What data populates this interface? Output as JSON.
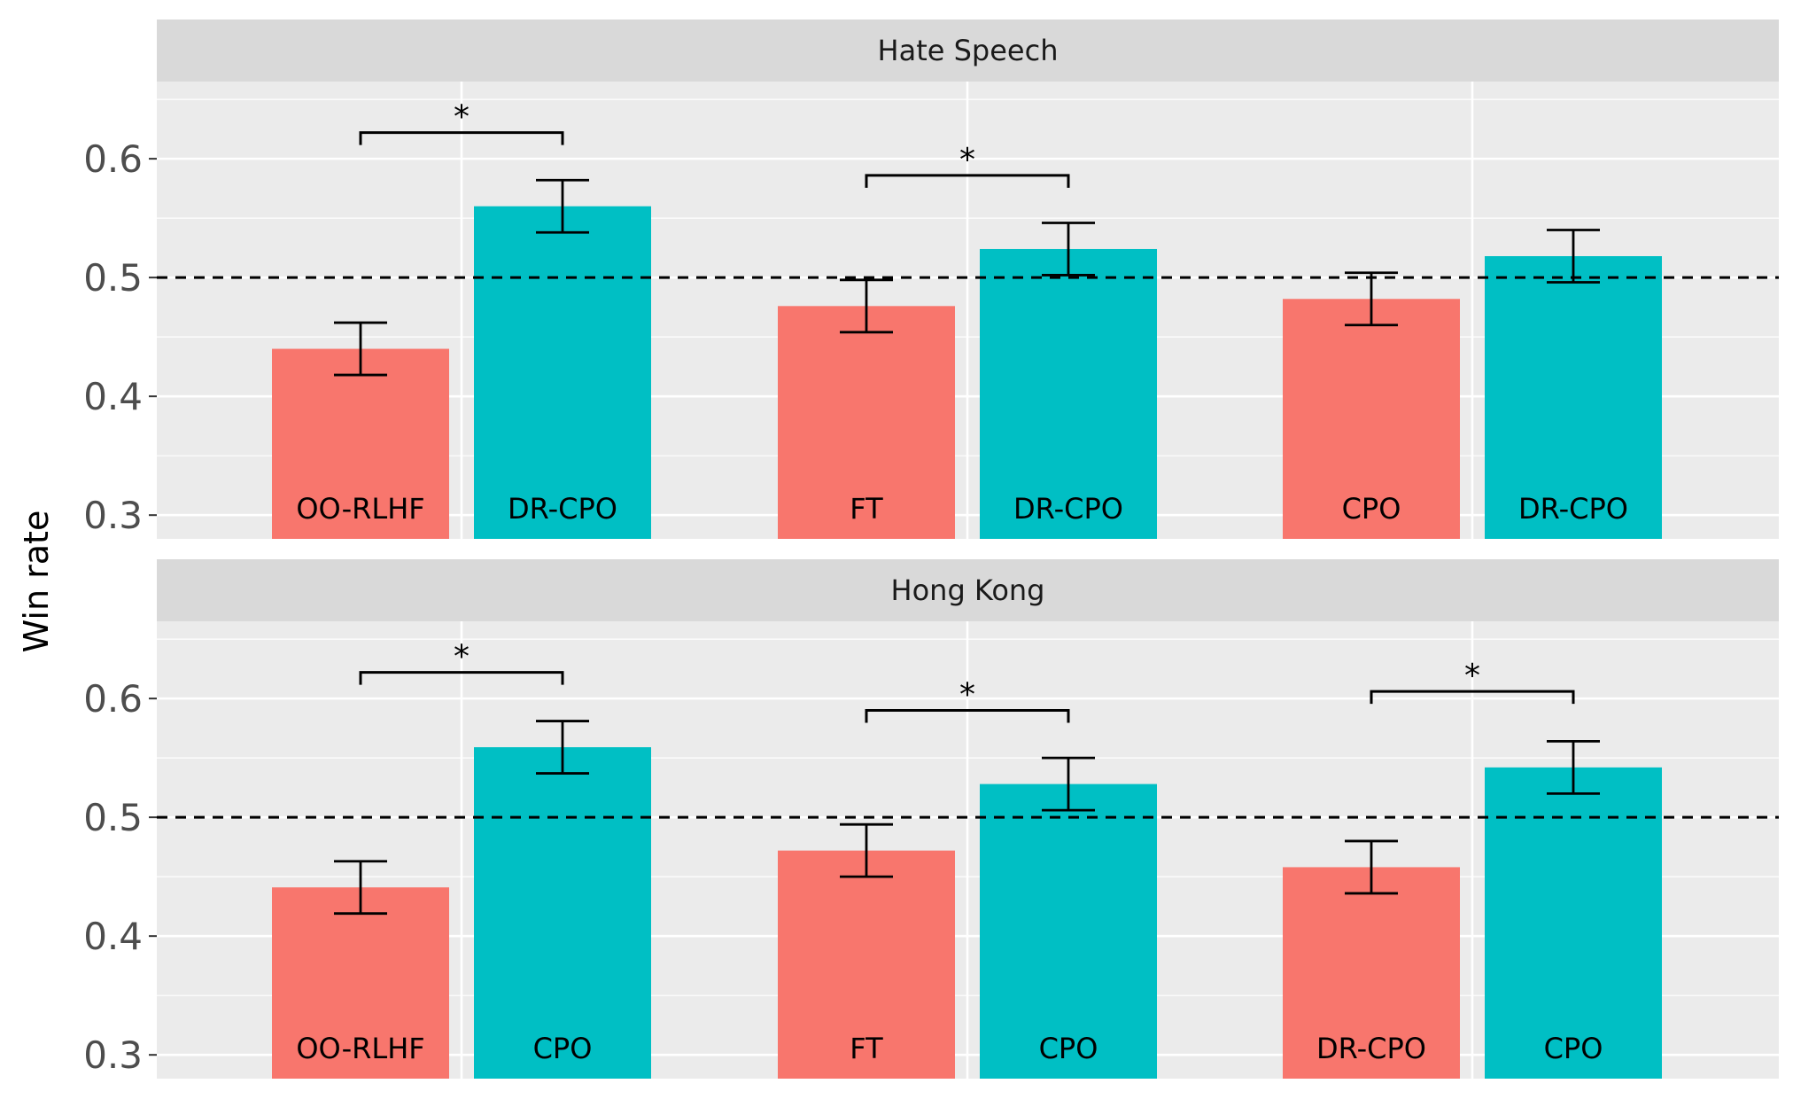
{
  "chart_data": {
    "type": "bar",
    "ylabel": "Win rate",
    "ylim": [
      0.28,
      0.665
    ],
    "yticks": [
      "0.3",
      "0.4",
      "0.5",
      "0.6"
    ],
    "reference_line": 0.5,
    "grid": true,
    "colors": {
      "baseline": "#F8766D",
      "comparison": "#00BFC4"
    },
    "panels": [
      {
        "title": "Hate Speech",
        "groups": [
          {
            "bars": [
              {
                "label": "OO-RLHF",
                "value": 0.44,
                "err": [
                  0.418,
                  0.462
                ],
                "color": "#F8766D"
              },
              {
                "label": "DR-CPO",
                "value": 0.56,
                "err": [
                  0.538,
                  0.582
                ],
                "color": "#00BFC4"
              }
            ],
            "significance": "*",
            "bracket_y": 0.622
          },
          {
            "bars": [
              {
                "label": "FT",
                "value": 0.476,
                "err": [
                  0.454,
                  0.498
                ],
                "color": "#F8766D"
              },
              {
                "label": "DR-CPO",
                "value": 0.524,
                "err": [
                  0.502,
                  0.546
                ],
                "color": "#00BFC4"
              }
            ],
            "significance": "*",
            "bracket_y": 0.586
          },
          {
            "bars": [
              {
                "label": "CPO",
                "value": 0.482,
                "err": [
                  0.46,
                  0.504
                ],
                "color": "#F8766D"
              },
              {
                "label": "DR-CPO",
                "value": 0.518,
                "err": [
                  0.496,
                  0.54
                ],
                "color": "#00BFC4"
              }
            ],
            "significance": "",
            "bracket_y": null
          }
        ]
      },
      {
        "title": "Hong Kong",
        "groups": [
          {
            "bars": [
              {
                "label": "OO-RLHF",
                "value": 0.441,
                "err": [
                  0.419,
                  0.463
                ],
                "color": "#F8766D"
              },
              {
                "label": "CPO",
                "value": 0.559,
                "err": [
                  0.537,
                  0.581
                ],
                "color": "#00BFC4"
              }
            ],
            "significance": "*",
            "bracket_y": 0.622
          },
          {
            "bars": [
              {
                "label": "FT",
                "value": 0.472,
                "err": [
                  0.45,
                  0.494
                ],
                "color": "#F8766D"
              },
              {
                "label": "CPO",
                "value": 0.528,
                "err": [
                  0.506,
                  0.55
                ],
                "color": "#00BFC4"
              }
            ],
            "significance": "*",
            "bracket_y": 0.59
          },
          {
            "bars": [
              {
                "label": "DR-CPO",
                "value": 0.458,
                "err": [
                  0.436,
                  0.48
                ],
                "color": "#F8766D"
              },
              {
                "label": "CPO",
                "value": 0.542,
                "err": [
                  0.52,
                  0.564
                ],
                "color": "#00BFC4"
              }
            ],
            "significance": "*",
            "bracket_y": 0.606
          }
        ]
      }
    ]
  }
}
